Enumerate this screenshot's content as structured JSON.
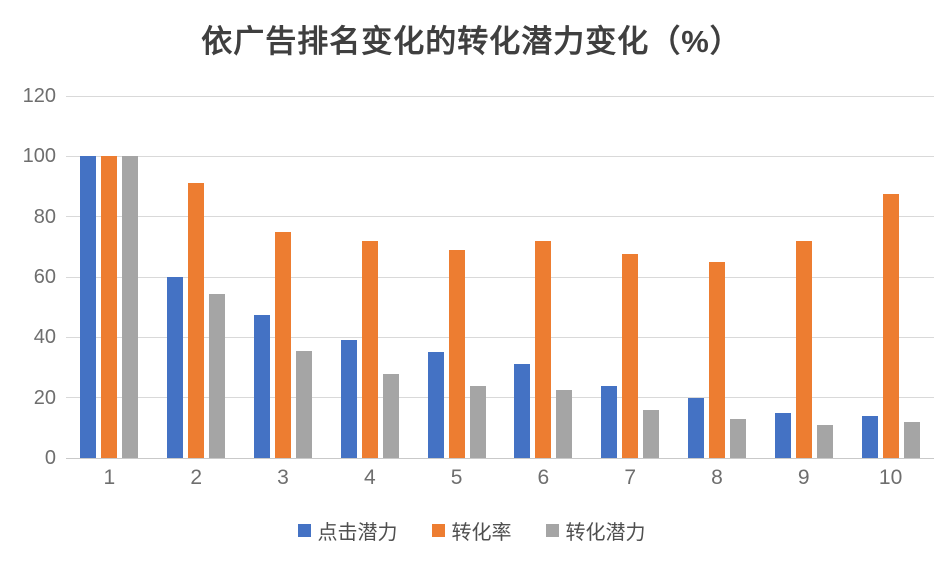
{
  "chart_data": {
    "type": "bar",
    "title": "依广告排名变化的转化潜力变化（%）",
    "xlabel": "",
    "ylabel": "",
    "categories": [
      "1",
      "2",
      "3",
      "4",
      "5",
      "6",
      "7",
      "8",
      "9",
      "10"
    ],
    "series": [
      {
        "name": "点击潜力",
        "color": "#4472C4",
        "values": [
          100,
          60,
          47.5,
          39,
          35,
          31,
          24,
          20,
          15,
          14
        ]
      },
      {
        "name": "转化率",
        "color": "#ED7D31",
        "values": [
          100,
          91,
          75,
          72,
          69,
          72,
          67.5,
          65,
          72,
          87.5
        ]
      },
      {
        "name": "转化潜力",
        "color": "#A5A5A5",
        "values": [
          100,
          54.5,
          35.5,
          28,
          24,
          22.5,
          16,
          13,
          11,
          12
        ]
      }
    ],
    "ylim": [
      0,
      120
    ],
    "yticks": [
      0,
      20,
      40,
      60,
      80,
      100,
      120
    ],
    "grid": true,
    "legend_position": "bottom"
  },
  "colors": {
    "title_text": "#3f3f3f",
    "tick_text": "#6e6e6e",
    "legend_text": "#4f4f4f",
    "gridline": "#d9d9d9",
    "axis_line": "#c9c9c9",
    "background": "#ffffff"
  }
}
